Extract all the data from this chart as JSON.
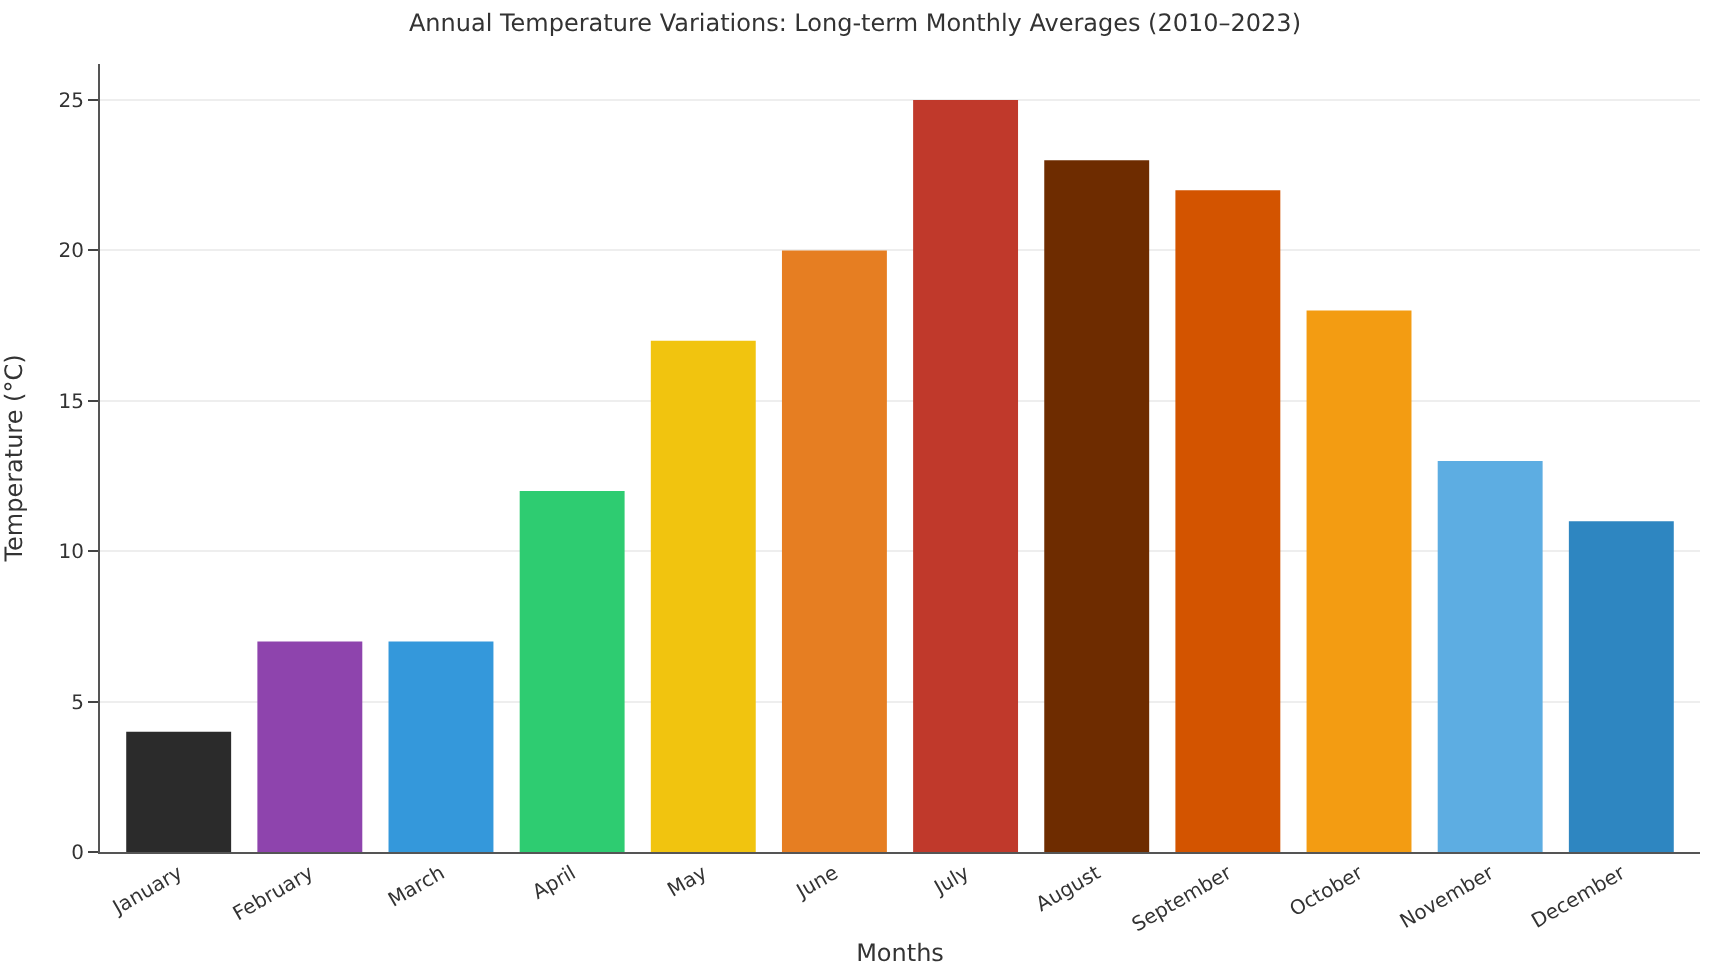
{
  "chart_data": {
    "type": "bar",
    "title": "Annual Temperature Variations: Long-term Monthly Averages (2010–2023)",
    "xlabel": "Months",
    "ylabel": "Temperature (°C)",
    "categories": [
      "January",
      "February",
      "March",
      "April",
      "May",
      "June",
      "July",
      "August",
      "September",
      "October",
      "November",
      "December"
    ],
    "values": [
      4,
      7,
      7,
      12,
      17,
      20,
      25,
      23,
      22,
      18,
      13,
      11
    ],
    "colors": [
      "#2b2b2b",
      "#8e44ad",
      "#3498db",
      "#2ecc71",
      "#f1c40f",
      "#e67e22",
      "#c0392b",
      "#6e2c00",
      "#d35400",
      "#f39c12",
      "#5dade2",
      "#2e86c1"
    ],
    "ylim": [
      0,
      26.2
    ],
    "yticks": [
      0,
      5,
      10,
      15,
      20,
      25
    ],
    "grid": "y"
  }
}
